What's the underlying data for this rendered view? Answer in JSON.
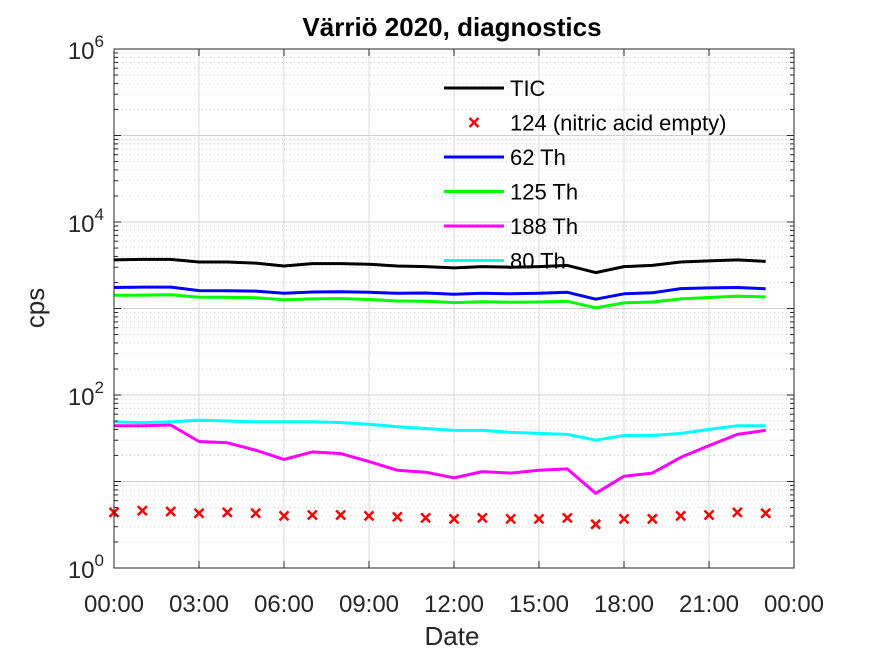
{
  "chart_data": {
    "type": "line",
    "title": "Värriö 2020, diagnostics",
    "xlabel": "Date",
    "ylabel": "cps",
    "yscale": "log",
    "ylim": [
      1,
      1000000
    ],
    "xlim_hours": [
      0,
      24
    ],
    "grid": true,
    "legend_position": "top-center",
    "x_tick_labels": [
      "00:00",
      "03:00",
      "06:00",
      "09:00",
      "12:00",
      "15:00",
      "18:00",
      "21:00",
      "00:00"
    ],
    "y_ticks": [
      {
        "base": "10",
        "exp": "0"
      },
      {
        "base": "10",
        "exp": "2"
      },
      {
        "base": "10",
        "exp": "4"
      },
      {
        "base": "10",
        "exp": "6"
      }
    ],
    "x_hours": [
      0,
      1,
      2,
      3,
      4,
      5,
      6,
      7,
      8,
      9,
      10,
      11,
      12,
      13,
      14,
      15,
      16,
      17,
      18,
      19,
      20,
      21,
      22,
      23
    ],
    "series": [
      {
        "name": "TIC",
        "color": "#000000",
        "marker": "line",
        "values": [
          3650,
          3700,
          3700,
          3450,
          3450,
          3350,
          3100,
          3300,
          3300,
          3250,
          3100,
          3050,
          2950,
          3050,
          3000,
          3050,
          3150,
          2600,
          3050,
          3150,
          3450,
          3550,
          3650,
          3500
        ]
      },
      {
        "name": "124 (nitric acid empty)",
        "color": "#ff0000",
        "marker": "x",
        "values": [
          4.4,
          4.6,
          4.5,
          4.3,
          4.4,
          4.3,
          4.0,
          4.1,
          4.1,
          4.0,
          3.9,
          3.8,
          3.7,
          3.8,
          3.7,
          3.7,
          3.8,
          3.2,
          3.7,
          3.7,
          4.0,
          4.1,
          4.4,
          4.3
        ]
      },
      {
        "name": "62 Th",
        "color": "#0000ff",
        "marker": "line",
        "values": [
          1750,
          1770,
          1770,
          1610,
          1600,
          1590,
          1500,
          1550,
          1560,
          1540,
          1500,
          1510,
          1460,
          1500,
          1480,
          1500,
          1540,
          1280,
          1480,
          1520,
          1700,
          1730,
          1750,
          1690
        ]
      },
      {
        "name": "125 Th",
        "color": "#00ff00",
        "marker": "line",
        "values": [
          1420,
          1430,
          1440,
          1350,
          1350,
          1330,
          1260,
          1290,
          1300,
          1270,
          1220,
          1210,
          1170,
          1200,
          1180,
          1190,
          1210,
          1020,
          1160,
          1190,
          1290,
          1340,
          1390,
          1360
        ]
      },
      {
        "name": "188 Th",
        "color": "#ff00ff",
        "marker": "line",
        "values": [
          44,
          44,
          45,
          29,
          28,
          23,
          18,
          22,
          21,
          17,
          13.5,
          12.8,
          11,
          13,
          12.5,
          13.5,
          14,
          7.3,
          11.5,
          12.5,
          19,
          26,
          35,
          39
        ]
      },
      {
        "name": "80 Th",
        "color": "#00ffff",
        "marker": "line",
        "values": [
          49,
          48,
          49,
          51,
          50,
          49,
          49,
          49,
          48,
          46,
          43,
          41,
          39,
          39,
          37,
          36,
          35,
          30,
          34,
          34,
          36,
          40,
          44,
          44
        ]
      }
    ]
  }
}
